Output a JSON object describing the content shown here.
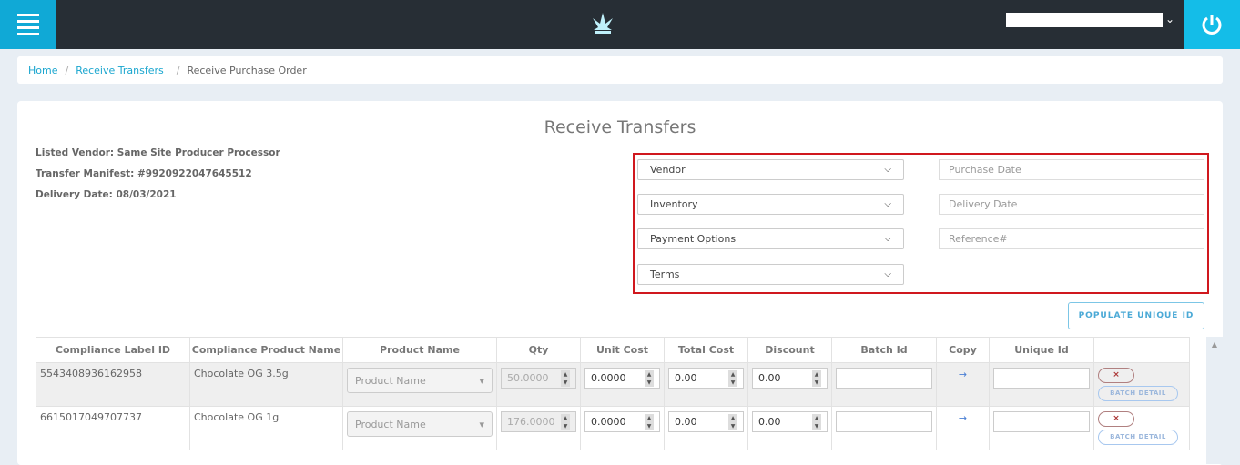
{
  "header": {
    "menu_icon": "hamburger-icon",
    "logo_icon": "cannabis-leaf-icon",
    "power_icon": "power-icon",
    "user_chevron": "chevron-down-icon"
  },
  "breadcrumb": [
    {
      "label": "Home"
    },
    {
      "label": "Receive Transfers"
    },
    {
      "label": "Receive Purchase Order"
    }
  ],
  "page": {
    "title": "Receive Transfers",
    "listed_vendor": "Listed Vendor: Same Site Producer Processor",
    "transfer_manifest": "Transfer Manifest: #9920922047645512",
    "delivery_date": "Delivery Date: 08/03/2021"
  },
  "form": {
    "vendor": "Vendor",
    "inventory": "Inventory",
    "payment_options": "Payment Options",
    "terms": "Terms",
    "purchase_date_placeholder": "Purchase Date",
    "delivery_date_placeholder": "Delivery Date",
    "reference_placeholder": "Reference#"
  },
  "populate_label": "POPULATE UNIQUE ID",
  "table": {
    "headers": [
      "Compliance Label ID",
      "Compliance Product Name",
      "Product Name",
      "Qty",
      "Unit Cost",
      "Total Cost",
      "Discount",
      "Batch Id",
      "Copy",
      "Unique Id",
      ""
    ],
    "rows": [
      {
        "label_id": "5543408936162958",
        "product": "Chocolate OG 3.5g",
        "product_name_placeholder": "Product Name",
        "qty": "50.0000",
        "unit_cost": "0.0000",
        "total_cost": "0.00",
        "discount": "0.00",
        "remove": "×",
        "batch_detail": "BATCH DETAIL"
      },
      {
        "label_id": "6615017049707737",
        "product": "Chocolate OG 1g",
        "product_name_placeholder": "Product Name",
        "qty": "176.0000",
        "unit_cost": "0.0000",
        "total_cost": "0.00",
        "discount": "0.00",
        "remove": "×",
        "batch_detail": "BATCH DETAIL"
      }
    ]
  },
  "colors": {
    "topbar": "#272e35",
    "accent": "#10a9d6",
    "highlight_border": "#d0181e"
  }
}
